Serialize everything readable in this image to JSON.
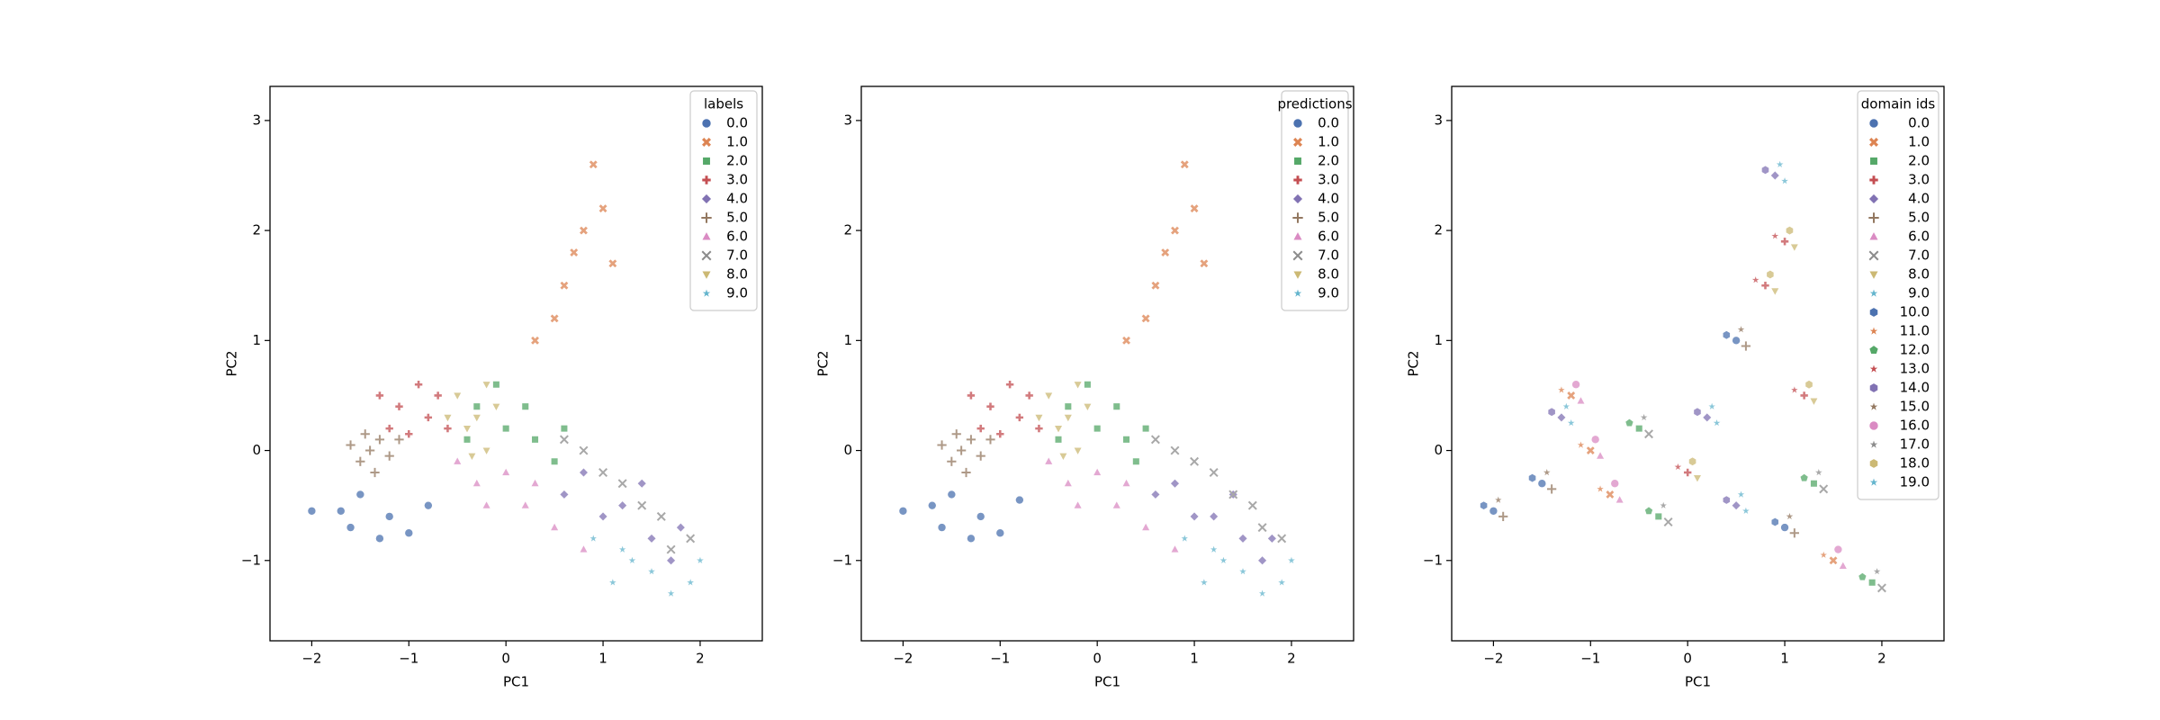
{
  "chart_data": [
    {
      "type": "scatter",
      "xlabel": "PC1",
      "ylabel": "PC2",
      "legend_title": "labels",
      "legend": "upper right",
      "xlim": [
        -2.43,
        2.64
      ],
      "ylim": [
        -1.73,
        3.31
      ],
      "xticks": [
        {
          "value": -2,
          "label": "−2"
        },
        {
          "value": -1,
          "label": "−1"
        },
        0,
        1,
        2
      ],
      "yticks": [
        {
          "value": -1,
          "label": "−1"
        },
        0,
        1,
        2,
        3
      ],
      "series": [
        {
          "name": "0.0",
          "color": "#4c72b0",
          "marker": "o",
          "x": [
            -1.7,
            -1.2,
            -1.5,
            -1.0,
            -2.0,
            -1.3,
            -0.8,
            -1.6
          ],
          "y": [
            -0.55,
            -0.6,
            -0.4,
            -0.75,
            -0.55,
            -0.8,
            -0.5,
            -0.7
          ]
        },
        {
          "name": "1.0",
          "color": "#dd8452",
          "marker": "X",
          "x": [
            0.8,
            0.9,
            0.6,
            1.0,
            0.3,
            0.7,
            1.1,
            0.5
          ],
          "y": [
            2.0,
            2.6,
            1.5,
            2.2,
            1.0,
            1.8,
            1.7,
            1.2
          ]
        },
        {
          "name": "2.0",
          "color": "#55a868",
          "marker": "s",
          "x": [
            0.0,
            -0.3,
            0.3,
            0.5,
            -0.1,
            0.2,
            0.6,
            -0.4
          ],
          "y": [
            0.2,
            0.4,
            0.1,
            -0.1,
            0.6,
            0.4,
            0.2,
            0.1
          ]
        },
        {
          "name": "3.0",
          "color": "#c44e52",
          "marker": "P",
          "x": [
            -1.1,
            -0.8,
            -1.3,
            -0.9,
            -0.6,
            -1.2,
            -0.7,
            -1.0
          ],
          "y": [
            0.4,
            0.3,
            0.5,
            0.6,
            0.2,
            0.2,
            0.5,
            0.15
          ]
        },
        {
          "name": "4.0",
          "color": "#8172b3",
          "marker": "D",
          "x": [
            1.2,
            1.5,
            0.8,
            1.7,
            1.0,
            1.4,
            0.6,
            1.8
          ],
          "y": [
            -0.5,
            -0.8,
            -0.2,
            -1.0,
            -0.6,
            -0.3,
            -0.4,
            -0.7
          ]
        },
        {
          "name": "5.0",
          "color": "#937860",
          "marker": "+",
          "x": [
            -1.4,
            -1.3,
            -1.5,
            -1.2,
            -1.6,
            -1.35,
            -1.1,
            -1.45
          ],
          "y": [
            0.0,
            0.1,
            -0.1,
            -0.05,
            0.05,
            -0.2,
            0.1,
            0.15
          ]
        },
        {
          "name": "6.0",
          "color": "#da8bc3",
          "marker": "^",
          "x": [
            -0.3,
            0.2,
            -0.5,
            0.5,
            0.0,
            0.8,
            -0.2,
            0.3
          ],
          "y": [
            -0.3,
            -0.5,
            -0.1,
            -0.7,
            -0.2,
            -0.9,
            -0.5,
            -0.3
          ]
        },
        {
          "name": "7.0",
          "color": "#8c8c8c",
          "marker": "x",
          "x": [
            1.2,
            0.8,
            1.6,
            1.0,
            1.9,
            1.4,
            0.6,
            1.7
          ],
          "y": [
            -0.3,
            0.0,
            -0.6,
            -0.2,
            -0.8,
            -0.5,
            0.1,
            -0.9
          ]
        },
        {
          "name": "8.0",
          "color": "#ccb974",
          "marker": "v",
          "x": [
            -0.3,
            -0.5,
            -0.2,
            -0.4,
            -0.1,
            -0.6,
            -0.2,
            -0.35
          ],
          "y": [
            0.3,
            0.5,
            0.0,
            0.2,
            0.4,
            0.3,
            0.6,
            -0.05
          ]
        },
        {
          "name": "9.0",
          "color": "#64b5cd",
          "marker": "*",
          "x": [
            1.5,
            1.9,
            1.2,
            0.9,
            1.7,
            1.3,
            2.0,
            1.1
          ],
          "y": [
            -1.1,
            -1.2,
            -0.9,
            -0.8,
            -1.3,
            -1.0,
            -1.0,
            -1.2
          ]
        }
      ]
    },
    {
      "type": "scatter",
      "xlabel": "PC1",
      "ylabel": "PC2",
      "legend_title": "predictions",
      "legend": "upper right",
      "xlim": [
        -2.43,
        2.64
      ],
      "ylim": [
        -1.73,
        3.31
      ],
      "xticks": [
        {
          "value": -2,
          "label": "−2"
        },
        {
          "value": -1,
          "label": "−1"
        },
        0,
        1,
        2
      ],
      "yticks": [
        {
          "value": -1,
          "label": "−1"
        },
        0,
        1,
        2,
        3
      ],
      "series": [
        {
          "name": "0.0",
          "color": "#4c72b0",
          "marker": "o",
          "x": [
            -1.7,
            -1.2,
            -1.5,
            -1.0,
            -2.0,
            -1.3,
            -0.8,
            -1.6
          ],
          "y": [
            -0.5,
            -0.6,
            -0.4,
            -0.75,
            -0.55,
            -0.8,
            -0.45,
            -0.7
          ]
        },
        {
          "name": "1.0",
          "color": "#dd8452",
          "marker": "X",
          "x": [
            0.8,
            0.9,
            0.6,
            1.0,
            0.3,
            0.7,
            1.1,
            0.5
          ],
          "y": [
            2.0,
            2.6,
            1.5,
            2.2,
            1.0,
            1.8,
            1.7,
            1.2
          ]
        },
        {
          "name": "2.0",
          "color": "#55a868",
          "marker": "s",
          "x": [
            0.0,
            -0.3,
            0.3,
            0.4,
            -0.1,
            0.2,
            0.5,
            -0.4
          ],
          "y": [
            0.2,
            0.4,
            0.1,
            -0.1,
            0.6,
            0.4,
            0.2,
            0.1
          ]
        },
        {
          "name": "3.0",
          "color": "#c44e52",
          "marker": "P",
          "x": [
            -1.1,
            -0.8,
            -1.3,
            -0.9,
            -0.6,
            -1.2,
            -0.7,
            -1.0
          ],
          "y": [
            0.4,
            0.3,
            0.5,
            0.6,
            0.2,
            0.2,
            0.5,
            0.15
          ]
        },
        {
          "name": "4.0",
          "color": "#8172b3",
          "marker": "D",
          "x": [
            1.2,
            1.5,
            0.8,
            1.7,
            1.0,
            1.4,
            0.6,
            1.8
          ],
          "y": [
            -0.6,
            -0.8,
            -0.3,
            -1.0,
            -0.6,
            -0.4,
            -0.4,
            -0.8
          ]
        },
        {
          "name": "5.0",
          "color": "#937860",
          "marker": "+",
          "x": [
            -1.4,
            -1.3,
            -1.5,
            -1.2,
            -1.6,
            -1.35,
            -1.1,
            -1.45
          ],
          "y": [
            0.0,
            0.1,
            -0.1,
            -0.05,
            0.05,
            -0.2,
            0.1,
            0.15
          ]
        },
        {
          "name": "6.0",
          "color": "#da8bc3",
          "marker": "^",
          "x": [
            -0.3,
            0.2,
            -0.5,
            0.5,
            0.0,
            0.8,
            -0.2,
            0.3
          ],
          "y": [
            -0.3,
            -0.5,
            -0.1,
            -0.7,
            -0.2,
            -0.9,
            -0.5,
            -0.3
          ]
        },
        {
          "name": "7.0",
          "color": "#8c8c8c",
          "marker": "x",
          "x": [
            1.2,
            0.8,
            1.6,
            1.0,
            1.9,
            1.4,
            0.6,
            1.7
          ],
          "y": [
            -0.2,
            0.0,
            -0.5,
            -0.1,
            -0.8,
            -0.4,
            0.1,
            -0.7
          ]
        },
        {
          "name": "8.0",
          "color": "#ccb974",
          "marker": "v",
          "x": [
            -0.3,
            -0.5,
            -0.2,
            -0.4,
            -0.1,
            -0.6,
            -0.2,
            -0.35
          ],
          "y": [
            0.3,
            0.5,
            0.0,
            0.2,
            0.4,
            0.3,
            0.6,
            -0.05
          ]
        },
        {
          "name": "9.0",
          "color": "#64b5cd",
          "marker": "*",
          "x": [
            1.5,
            1.9,
            1.2,
            0.9,
            1.7,
            1.3,
            2.0,
            1.1
          ],
          "y": [
            -1.1,
            -1.2,
            -0.9,
            -0.8,
            -1.3,
            -1.0,
            -1.0,
            -1.2
          ]
        }
      ]
    },
    {
      "type": "scatter",
      "xlabel": "PC1",
      "ylabel": "PC2",
      "legend_title": "domain ids",
      "legend": "upper right",
      "xlim": [
        -2.43,
        2.64
      ],
      "ylim": [
        -1.73,
        3.31
      ],
      "xticks": [
        {
          "value": -2,
          "label": "−2"
        },
        {
          "value": -1,
          "label": "−1"
        },
        0,
        1,
        2
      ],
      "yticks": [
        {
          "value": -1,
          "label": "−1"
        },
        0,
        1,
        2,
        3
      ],
      "series": [
        {
          "name": "0.0",
          "color": "#4c72b0",
          "marker": "o",
          "x": [
            -2.0,
            1.0,
            0.5,
            -1.5
          ],
          "y": [
            -0.55,
            -0.7,
            1.0,
            -0.3
          ]
        },
        {
          "name": "1.0",
          "color": "#dd8452",
          "marker": "X",
          "x": [
            -1.0,
            1.5,
            -1.2,
            -0.8
          ],
          "y": [
            0.0,
            -1.0,
            0.5,
            -0.4
          ]
        },
        {
          "name": "2.0",
          "color": "#55a868",
          "marker": "s",
          "x": [
            -0.5,
            1.9,
            -0.3,
            1.3
          ],
          "y": [
            0.2,
            -1.2,
            -0.6,
            -0.3
          ]
        },
        {
          "name": "3.0",
          "color": "#c44e52",
          "marker": "P",
          "x": [
            0.0,
            0.8,
            1.2,
            1.0
          ],
          "y": [
            -0.2,
            1.5,
            0.5,
            1.9
          ]
        },
        {
          "name": "4.0",
          "color": "#8172b3",
          "marker": "D",
          "x": [
            0.5,
            0.9,
            0.2,
            -1.3
          ],
          "y": [
            -0.5,
            2.5,
            0.3,
            0.3
          ]
        },
        {
          "name": "5.0",
          "color": "#937860",
          "marker": "+",
          "x": [
            1.1,
            0.6,
            -1.4,
            -1.9
          ],
          "y": [
            -0.75,
            0.95,
            -0.35,
            -0.6
          ]
        },
        {
          "name": "6.0",
          "color": "#da8bc3",
          "marker": "^",
          "x": [
            -0.9,
            1.6,
            -1.1,
            -0.7
          ],
          "y": [
            -0.05,
            -1.05,
            0.45,
            -0.45
          ]
        },
        {
          "name": "7.0",
          "color": "#8c8c8c",
          "marker": "x",
          "x": [
            -0.4,
            2.0,
            -0.2,
            1.4
          ],
          "y": [
            0.15,
            -1.25,
            -0.65,
            -0.35
          ]
        },
        {
          "name": "8.0",
          "color": "#ccb974",
          "marker": "v",
          "x": [
            0.1,
            0.9,
            1.3,
            1.1
          ],
          "y": [
            -0.25,
            1.45,
            0.45,
            1.85
          ]
        },
        {
          "name": "9.0",
          "color": "#64b5cd",
          "marker": "*",
          "x": [
            0.6,
            1.0,
            0.3,
            -1.2
          ],
          "y": [
            -0.55,
            2.45,
            0.25,
            0.25
          ]
        },
        {
          "name": "10.0",
          "color": "#4c72b0",
          "marker": "h",
          "x": [
            -2.1,
            0.9,
            0.4,
            -1.6
          ],
          "y": [
            -0.5,
            -0.65,
            1.05,
            -0.25
          ]
        },
        {
          "name": "11.0",
          "color": "#dd8452",
          "marker": "*",
          "x": [
            -1.1,
            1.4,
            -1.3,
            -0.9
          ],
          "y": [
            0.05,
            -0.95,
            0.55,
            -0.35
          ]
        },
        {
          "name": "12.0",
          "color": "#55a868",
          "marker": "p",
          "x": [
            -0.6,
            1.8,
            -0.4,
            1.2
          ],
          "y": [
            0.25,
            -1.15,
            -0.55,
            -0.25
          ]
        },
        {
          "name": "13.0",
          "color": "#c44e52",
          "marker": "*",
          "x": [
            -0.1,
            0.7,
            1.1,
            0.9
          ],
          "y": [
            -0.15,
            1.55,
            0.55,
            1.95
          ]
        },
        {
          "name": "14.0",
          "color": "#8172b3",
          "marker": "h",
          "x": [
            0.4,
            0.8,
            0.1,
            -1.4
          ],
          "y": [
            -0.45,
            2.55,
            0.35,
            0.35
          ]
        },
        {
          "name": "15.0",
          "color": "#937860",
          "marker": "*",
          "x": [
            -1.95,
            1.05,
            0.55,
            -1.45
          ],
          "y": [
            -0.45,
            -0.6,
            1.1,
            -0.2
          ]
        },
        {
          "name": "16.0",
          "color": "#da8bc3",
          "marker": "o",
          "x": [
            -0.95,
            1.55,
            -1.15,
            -0.75
          ],
          "y": [
            0.1,
            -0.9,
            0.6,
            -0.3
          ]
        },
        {
          "name": "17.0",
          "color": "#8c8c8c",
          "marker": "*",
          "x": [
            -0.45,
            1.95,
            -0.25,
            1.35
          ],
          "y": [
            0.3,
            -1.1,
            -0.5,
            -0.2
          ]
        },
        {
          "name": "18.0",
          "color": "#ccb974",
          "marker": "h",
          "x": [
            0.05,
            0.85,
            1.25,
            1.05
          ],
          "y": [
            -0.1,
            1.6,
            0.6,
            2.0
          ]
        },
        {
          "name": "19.0",
          "color": "#64b5cd",
          "marker": "*",
          "x": [
            0.55,
            0.95,
            0.25,
            -1.25
          ],
          "y": [
            -0.4,
            2.6,
            0.4,
            0.4
          ]
        }
      ]
    }
  ]
}
